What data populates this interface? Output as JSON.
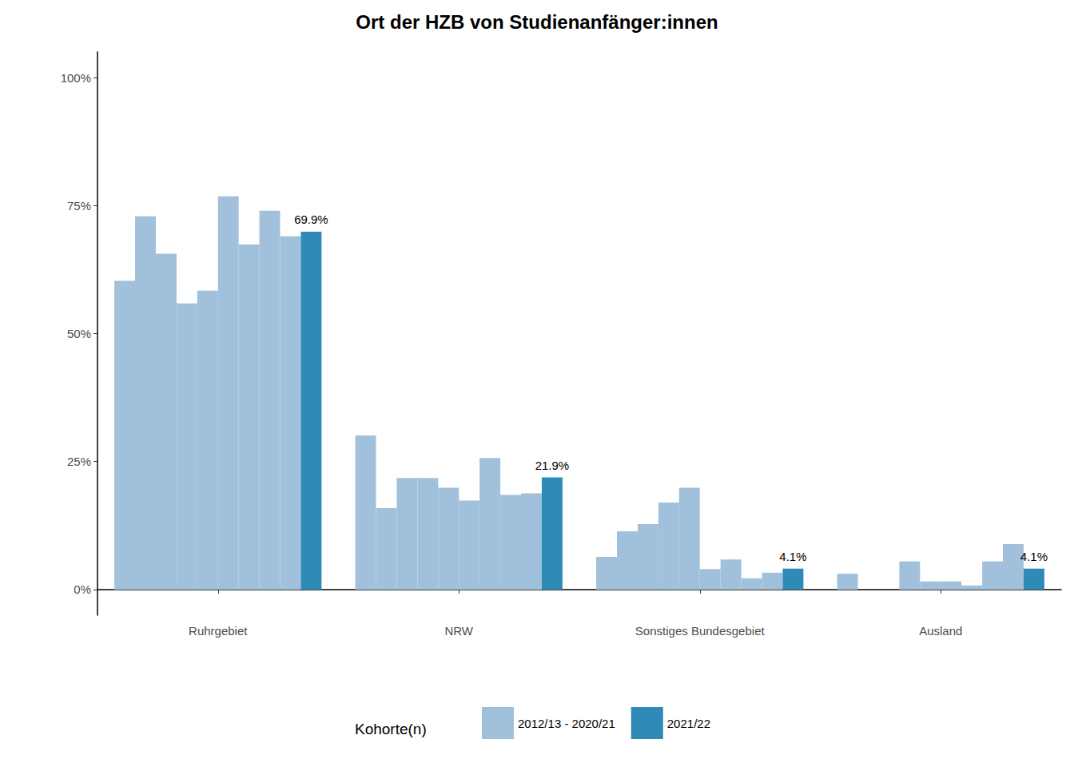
{
  "chart_data": {
    "type": "bar",
    "title": "Ort der HZB von Studienanfänger:innen",
    "categories": [
      "Ruhrgebiet",
      "NRW",
      "Sonstiges Bundesgebiet",
      "Ausland"
    ],
    "legend_title": "Kohorte(n)",
    "legend": "bottom",
    "grid": false,
    "ylim": [
      -5,
      105
    ],
    "yticks": [
      {
        "value": 0,
        "label": "0%"
      },
      {
        "value": 25,
        "label": "25%"
      },
      {
        "value": 50,
        "label": "50%"
      },
      {
        "value": 75,
        "label": "75%"
      },
      {
        "value": 100,
        "label": "100%"
      }
    ],
    "series": [
      {
        "name": "2012/13 - 2020/21",
        "color": "#a1c0dc",
        "values": [
          60.3,
          30.1,
          6.4,
          3.1
        ]
      },
      {
        "name": "2012/13 - 2020/21",
        "color": "#a1c0dc",
        "values": [
          72.9,
          15.9,
          11.4,
          null
        ]
      },
      {
        "name": "2012/13 - 2020/21",
        "color": "#a1c0dc",
        "values": [
          65.6,
          21.8,
          12.8,
          null
        ]
      },
      {
        "name": "2012/13 - 2020/21",
        "color": "#a1c0dc",
        "values": [
          55.9,
          21.8,
          17.0,
          5.5
        ]
      },
      {
        "name": "2012/13 - 2020/21",
        "color": "#a1c0dc",
        "values": [
          58.4,
          19.9,
          19.9,
          1.6
        ]
      },
      {
        "name": "2012/13 - 2020/21",
        "color": "#a1c0dc",
        "values": [
          76.8,
          17.4,
          4.0,
          1.6
        ]
      },
      {
        "name": "2012/13 - 2020/21",
        "color": "#a1c0dc",
        "values": [
          67.4,
          25.7,
          5.9,
          0.8
        ]
      },
      {
        "name": "2012/13 - 2020/21",
        "color": "#a1c0dc",
        "values": [
          74.0,
          18.5,
          2.2,
          5.5
        ]
      },
      {
        "name": "2012/13 - 2020/21",
        "color": "#a1c0dc",
        "values": [
          69.0,
          18.8,
          3.3,
          8.9
        ]
      },
      {
        "name": "2021/22",
        "color": "#2e8bb8",
        "values": [
          69.9,
          21.9,
          4.1,
          4.1
        ],
        "data_labels": true,
        "value_labels": [
          "69.9%",
          "21.9%",
          "4.1%",
          "4.1%"
        ]
      }
    ]
  }
}
